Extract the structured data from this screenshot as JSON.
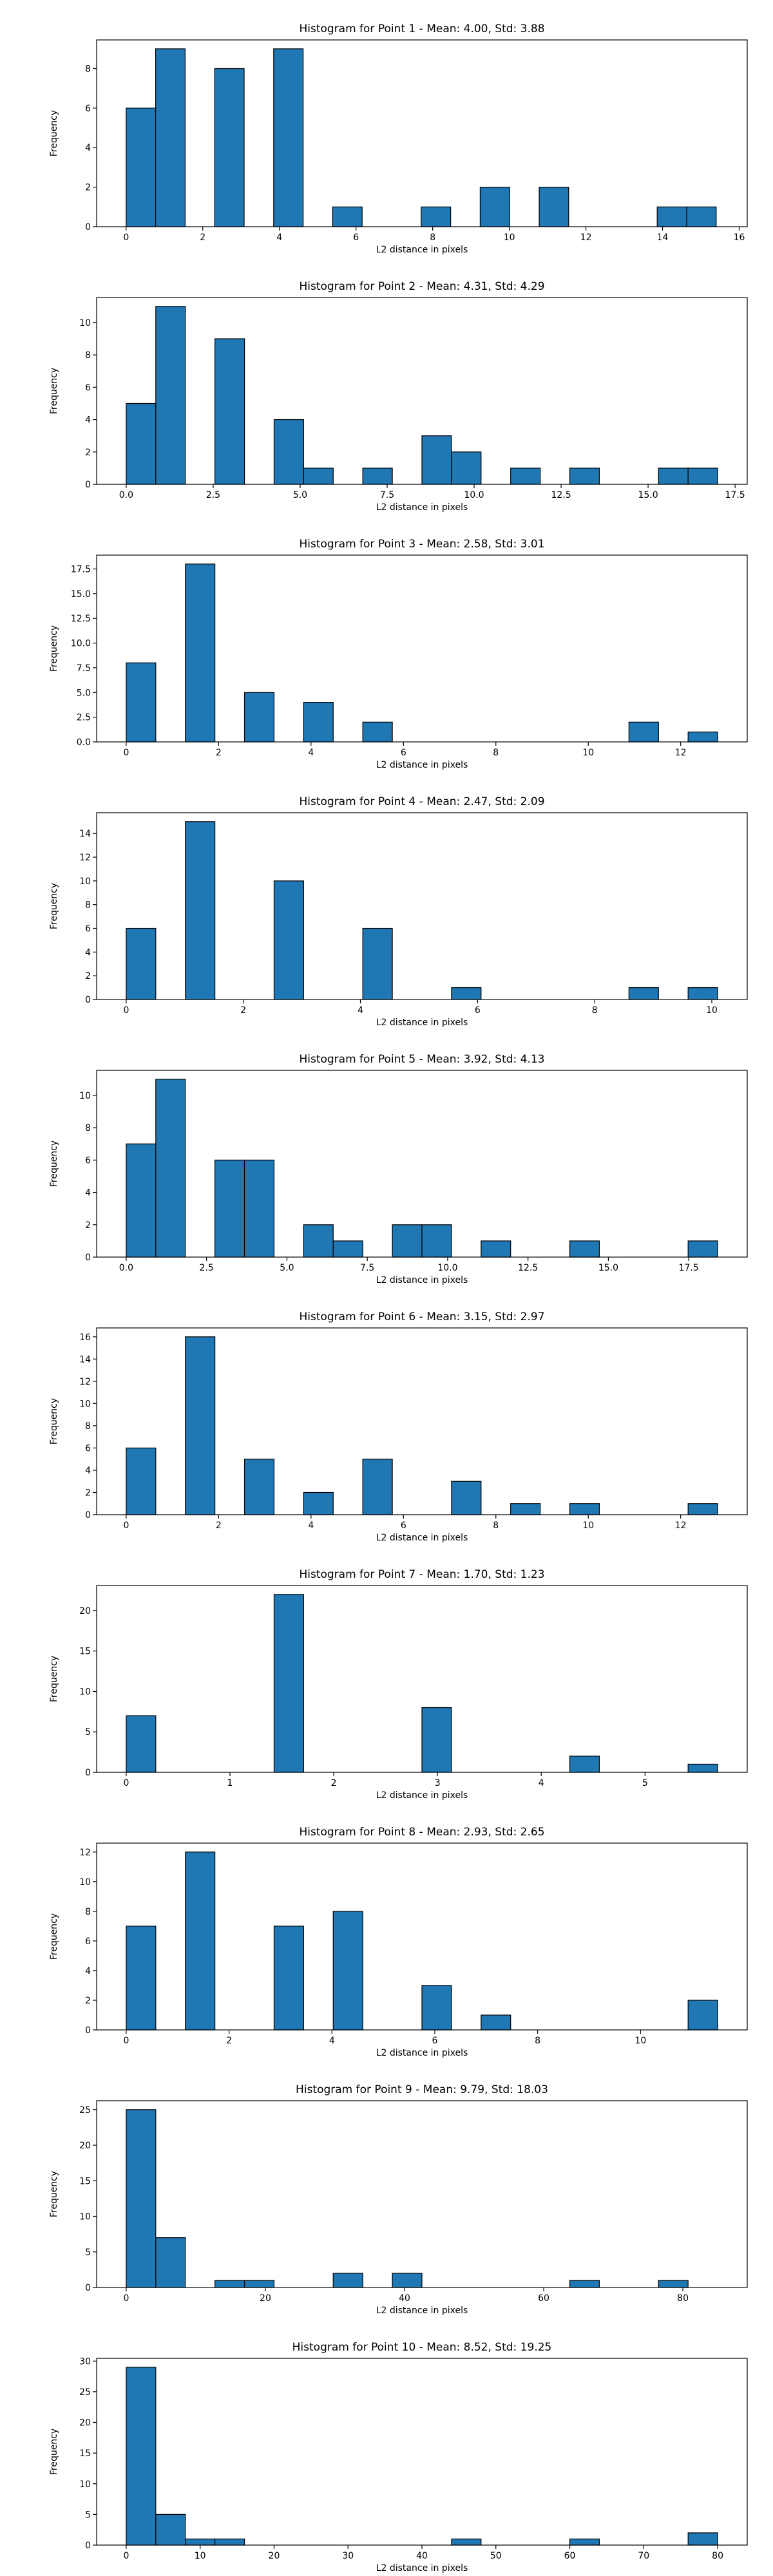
{
  "colors": {
    "bar_fill": "#1f77b4",
    "bar_edge": "#000000",
    "axes": "#000000"
  },
  "chart_data": [
    {
      "type": "bar",
      "title": "Histogram for Point 1 - Mean: 4.00, Std: 3.88",
      "xlabel": "L2 distance in pixels",
      "ylabel": "Frequency",
      "xlim": [
        -0.77,
        16.21
      ],
      "ylim": [
        0,
        9.45
      ],
      "xticks": [
        0,
        2,
        4,
        6,
        8,
        10,
        12,
        14,
        16
      ],
      "xtick_labels": [
        "0",
        "2",
        "4",
        "6",
        "8",
        "10",
        "12",
        "14",
        "16"
      ],
      "yticks": [
        0,
        2,
        4,
        6,
        8
      ],
      "ytick_labels": [
        "0",
        "2",
        "4",
        "6",
        "8"
      ],
      "bin_edges": [
        0,
        0.77,
        1.54,
        2.31,
        3.08,
        3.85,
        4.62,
        5.39,
        6.16,
        6.93,
        7.7,
        8.47,
        9.24,
        10.01,
        10.78,
        11.55,
        12.32,
        13.09,
        13.86,
        14.63,
        15.4
      ],
      "values": [
        6,
        9,
        0,
        8,
        0,
        9,
        0,
        1,
        0,
        0,
        1,
        0,
        2,
        0,
        2,
        0,
        0,
        0,
        1,
        1
      ]
    },
    {
      "type": "bar",
      "title": "Histogram for Point 2 - Mean: 4.31, Std: 4.29",
      "xlabel": "L2 distance in pixels",
      "ylabel": "Frequency",
      "xlim": [
        -0.85,
        17.85
      ],
      "ylim": [
        0,
        11.55
      ],
      "xticks": [
        0,
        2.5,
        5,
        7.5,
        10,
        12.5,
        15,
        17.5
      ],
      "xtick_labels": [
        "0.0",
        "2.5",
        "5.0",
        "7.5",
        "10.0",
        "12.5",
        "15.0",
        "17.5"
      ],
      "yticks": [
        0,
        2,
        4,
        6,
        8,
        10
      ],
      "ytick_labels": [
        "0",
        "2",
        "4",
        "6",
        "8",
        "10"
      ],
      "bin_edges": [
        0,
        0.85,
        1.7,
        2.55,
        3.4,
        4.25,
        5.1,
        5.95,
        6.8,
        7.65,
        8.5,
        9.35,
        10.2,
        11.05,
        11.9,
        12.75,
        13.6,
        14.45,
        15.3,
        16.15,
        17.0
      ],
      "values": [
        5,
        11,
        0,
        9,
        0,
        4,
        1,
        0,
        1,
        0,
        3,
        2,
        0,
        1,
        0,
        1,
        0,
        0,
        1,
        1
      ]
    },
    {
      "type": "bar",
      "title": "Histogram for Point 3 - Mean: 2.58, Std: 3.01",
      "xlabel": "L2 distance in pixels",
      "ylabel": "Frequency",
      "xlim": [
        -0.64,
        13.44
      ],
      "ylim": [
        0,
        18.9
      ],
      "xticks": [
        0,
        2,
        4,
        6,
        8,
        10,
        12
      ],
      "xtick_labels": [
        "0",
        "2",
        "4",
        "6",
        "8",
        "10",
        "12"
      ],
      "yticks": [
        0,
        2.5,
        5,
        7.5,
        10,
        12.5,
        15,
        17.5
      ],
      "ytick_labels": [
        "0.0",
        "2.5",
        "5.0",
        "7.5",
        "10.0",
        "12.5",
        "15.0",
        "17.5"
      ],
      "bin_edges": [
        0,
        0.64,
        1.28,
        1.92,
        2.56,
        3.2,
        3.84,
        4.48,
        5.12,
        5.76,
        6.4,
        7.04,
        7.68,
        8.32,
        8.96,
        9.6,
        10.24,
        10.88,
        11.52,
        12.16,
        12.8
      ],
      "values": [
        8,
        0,
        18,
        0,
        5,
        0,
        4,
        0,
        2,
        0,
        0,
        0,
        0,
        0,
        0,
        0,
        0,
        2,
        0,
        1
      ]
    },
    {
      "type": "bar",
      "title": "Histogram for Point 4 - Mean: 2.47, Std: 2.09",
      "xlabel": "L2 distance in pixels",
      "ylabel": "Frequency",
      "xlim": [
        -0.505,
        10.605
      ],
      "ylim": [
        0,
        15.75
      ],
      "xticks": [
        0,
        2,
        4,
        6,
        8,
        10
      ],
      "xtick_labels": [
        "0",
        "2",
        "4",
        "6",
        "8",
        "10"
      ],
      "yticks": [
        0,
        2,
        4,
        6,
        8,
        10,
        12,
        14
      ],
      "ytick_labels": [
        "0",
        "2",
        "4",
        "6",
        "8",
        "10",
        "12",
        "14"
      ],
      "bin_edges": [
        0,
        0.505,
        1.01,
        1.515,
        2.02,
        2.525,
        3.03,
        3.535,
        4.04,
        4.545,
        5.05,
        5.555,
        6.06,
        6.565,
        7.07,
        7.575,
        8.08,
        8.585,
        9.09,
        9.595,
        10.1
      ],
      "values": [
        6,
        0,
        15,
        0,
        0,
        10,
        0,
        0,
        6,
        0,
        0,
        1,
        0,
        0,
        0,
        0,
        0,
        1,
        0,
        1
      ]
    },
    {
      "type": "bar",
      "title": "Histogram for Point 5 - Mean: 3.92, Std: 4.13",
      "xlabel": "L2 distance in pixels",
      "ylabel": "Frequency",
      "xlim": [
        -0.92,
        19.32
      ],
      "ylim": [
        0,
        11.55
      ],
      "xticks": [
        0,
        2.5,
        5,
        7.5,
        10,
        12.5,
        15,
        17.5
      ],
      "xtick_labels": [
        "0.0",
        "2.5",
        "5.0",
        "7.5",
        "10.0",
        "12.5",
        "15.0",
        "17.5"
      ],
      "yticks": [
        0,
        2,
        4,
        6,
        8,
        10
      ],
      "ytick_labels": [
        "0",
        "2",
        "4",
        "6",
        "8",
        "10"
      ],
      "bin_edges": [
        0,
        0.92,
        1.84,
        2.76,
        3.68,
        4.6,
        5.52,
        6.44,
        7.36,
        8.28,
        9.2,
        10.12,
        11.04,
        11.96,
        12.88,
        13.8,
        14.72,
        15.64,
        16.56,
        17.48,
        18.4
      ],
      "values": [
        7,
        11,
        0,
        6,
        6,
        0,
        2,
        1,
        0,
        2,
        2,
        0,
        1,
        0,
        0,
        1,
        0,
        0,
        0,
        1
      ]
    },
    {
      "type": "bar",
      "title": "Histogram for Point 6 - Mean: 3.15, Std: 2.97",
      "xlabel": "L2 distance in pixels",
      "ylabel": "Frequency",
      "xlim": [
        -0.64,
        13.44
      ],
      "ylim": [
        0,
        16.8
      ],
      "xticks": [
        0,
        2,
        4,
        6,
        8,
        10,
        12
      ],
      "xtick_labels": [
        "0",
        "2",
        "4",
        "6",
        "8",
        "10",
        "12"
      ],
      "yticks": [
        0,
        2,
        4,
        6,
        8,
        10,
        12,
        14,
        16
      ],
      "ytick_labels": [
        "0",
        "2",
        "4",
        "6",
        "8",
        "10",
        "12",
        "14",
        "16"
      ],
      "bin_edges": [
        0,
        0.64,
        1.28,
        1.92,
        2.56,
        3.2,
        3.84,
        4.48,
        5.12,
        5.76,
        6.4,
        7.04,
        7.68,
        8.32,
        8.96,
        9.6,
        10.24,
        10.88,
        11.52,
        12.16,
        12.8
      ],
      "values": [
        6,
        0,
        16,
        0,
        5,
        0,
        2,
        0,
        5,
        0,
        0,
        3,
        0,
        1,
        0,
        1,
        0,
        0,
        0,
        1
      ]
    },
    {
      "type": "bar",
      "title": "Histogram for Point 7 - Mean: 1.70, Std: 1.23",
      "xlabel": "L2 distance in pixels",
      "ylabel": "Frequency",
      "xlim": [
        -0.285,
        5.985
      ],
      "ylim": [
        0,
        23.1
      ],
      "xticks": [
        0,
        1,
        2,
        3,
        4,
        5
      ],
      "xtick_labels": [
        "0",
        "1",
        "2",
        "3",
        "4",
        "5"
      ],
      "yticks": [
        0,
        5,
        10,
        15,
        20
      ],
      "ytick_labels": [
        "0",
        "5",
        "10",
        "15",
        "20"
      ],
      "bin_edges": [
        0,
        0.285,
        0.57,
        0.855,
        1.14,
        1.425,
        1.71,
        1.995,
        2.28,
        2.565,
        2.85,
        3.135,
        3.42,
        3.705,
        3.99,
        4.275,
        4.56,
        4.845,
        5.13,
        5.415,
        5.7
      ],
      "values": [
        7,
        0,
        0,
        0,
        0,
        22,
        0,
        0,
        0,
        0,
        8,
        0,
        0,
        0,
        0,
        2,
        0,
        0,
        0,
        1
      ]
    },
    {
      "type": "bar",
      "title": "Histogram for Point 8 - Mean: 2.93, Std: 2.65",
      "xlabel": "L2 distance in pixels",
      "ylabel": "Frequency",
      "xlim": [
        -0.575,
        12.075
      ],
      "ylim": [
        0,
        12.6
      ],
      "xticks": [
        0,
        2,
        4,
        6,
        8,
        10
      ],
      "xtick_labels": [
        "0",
        "2",
        "4",
        "6",
        "8",
        "10"
      ],
      "yticks": [
        0,
        2,
        4,
        6,
        8,
        10,
        12
      ],
      "ytick_labels": [
        "0",
        "2",
        "4",
        "6",
        "8",
        "10",
        "12"
      ],
      "bin_edges": [
        0,
        0.575,
        1.15,
        1.725,
        2.3,
        2.875,
        3.45,
        4.025,
        4.6,
        5.175,
        5.75,
        6.325,
        6.9,
        7.475,
        8.05,
        8.625,
        9.2,
        9.775,
        10.35,
        10.925,
        11.5
      ],
      "values": [
        7,
        0,
        12,
        0,
        0,
        7,
        0,
        8,
        0,
        0,
        3,
        0,
        1,
        0,
        0,
        0,
        0,
        0,
        0,
        2
      ]
    },
    {
      "type": "bar",
      "title": "Histogram for Point 9 - Mean: 9.79, Std: 18.03",
      "xlabel": "L2 distance in pixels",
      "ylabel": "Frequency",
      "xlim": [
        -4.25,
        89.25
      ],
      "ylim": [
        0,
        26.25
      ],
      "xticks": [
        0,
        20,
        40,
        60,
        80
      ],
      "xtick_labels": [
        "0",
        "20",
        "40",
        "60",
        "80"
      ],
      "yticks": [
        0,
        5,
        10,
        15,
        20,
        25
      ],
      "ytick_labels": [
        "0",
        "5",
        "10",
        "15",
        "20",
        "25"
      ],
      "bin_edges": [
        0,
        4.25,
        8.5,
        12.75,
        17.0,
        21.25,
        25.5,
        29.75,
        34.0,
        38.25,
        42.5,
        46.75,
        51.0,
        55.25,
        59.5,
        63.75,
        68.0,
        72.25,
        76.5,
        80.75,
        85.0
      ],
      "values": [
        25,
        7,
        0,
        1,
        1,
        0,
        0,
        2,
        0,
        2,
        0,
        0,
        0,
        0,
        0,
        1,
        0,
        0,
        1,
        0
      ]
    },
    {
      "type": "bar",
      "title": "Histogram for Point 10 - Mean: 8.52, Std: 19.25",
      "xlabel": "L2 distance in pixels",
      "ylabel": "Frequency",
      "xlim": [
        -4.0,
        84.0
      ],
      "ylim": [
        0,
        30.45
      ],
      "xticks": [
        0,
        10,
        20,
        30,
        40,
        50,
        60,
        70,
        80
      ],
      "xtick_labels": [
        "0",
        "10",
        "20",
        "30",
        "40",
        "50",
        "60",
        "70",
        "80"
      ],
      "yticks": [
        0,
        5,
        10,
        15,
        20,
        25,
        30
      ],
      "ytick_labels": [
        "0",
        "5",
        "10",
        "15",
        "20",
        "25",
        "30"
      ],
      "bin_edges": [
        0,
        4,
        8,
        12,
        16,
        20,
        24,
        28,
        32,
        36,
        40,
        44,
        48,
        52,
        56,
        60,
        64,
        68,
        72,
        76,
        80
      ],
      "values": [
        29,
        5,
        1,
        1,
        0,
        0,
        0,
        0,
        0,
        0,
        0,
        1,
        0,
        0,
        0,
        1,
        0,
        0,
        0,
        2
      ]
    }
  ]
}
